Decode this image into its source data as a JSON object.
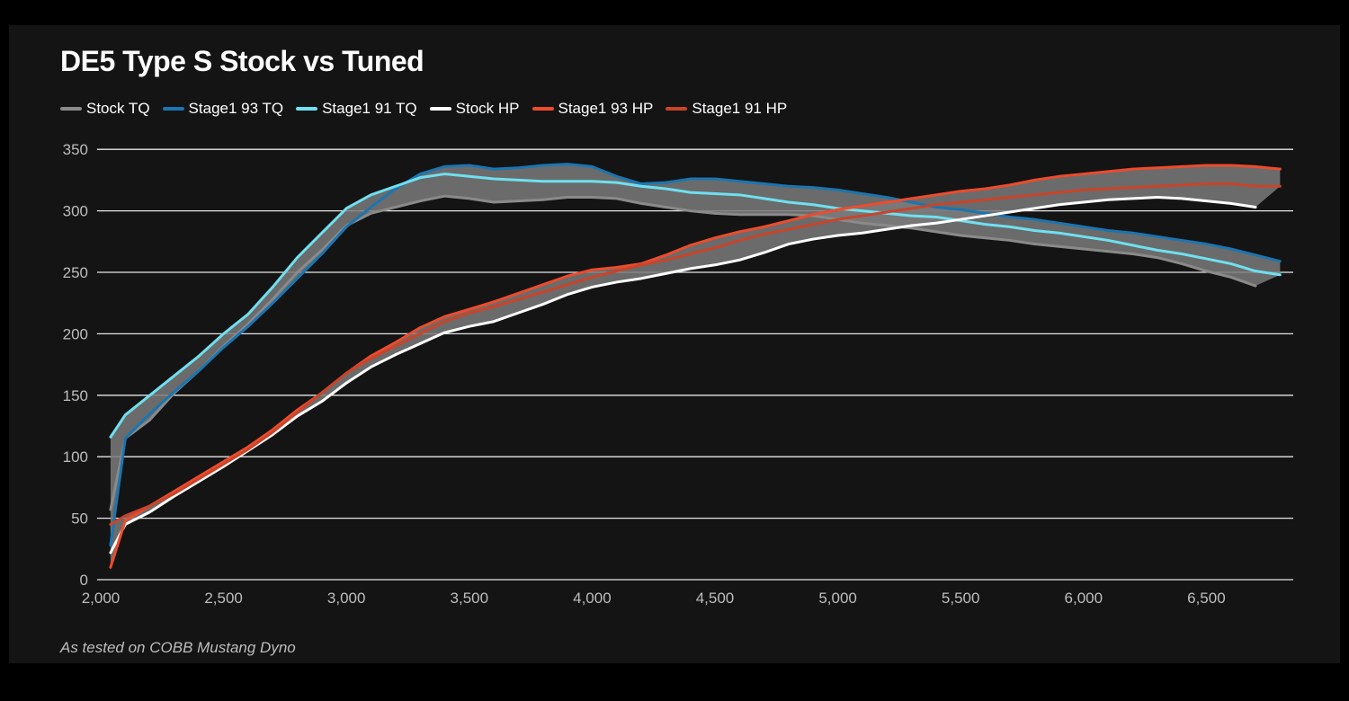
{
  "chart_data": {
    "type": "line",
    "title": "DE5 Type S Stock vs Tuned",
    "footnote": "As tested on COBB Mustang Dyno",
    "xlabel": "",
    "ylabel": "",
    "xlim": [
      2000,
      6850
    ],
    "ylim": [
      0,
      350
    ],
    "xticks": [
      2000,
      2500,
      3000,
      3500,
      4000,
      4500,
      5000,
      5500,
      6000,
      6500
    ],
    "xtick_labels": [
      "2,000",
      "2,500",
      "3,000",
      "3,500",
      "4,000",
      "4,500",
      "5,000",
      "5,500",
      "6,000",
      "6,500"
    ],
    "yticks": [
      0,
      50,
      100,
      150,
      200,
      250,
      300,
      350
    ],
    "ytick_labels": [
      "0",
      "50",
      "100",
      "150",
      "200",
      "250",
      "300",
      "350"
    ],
    "grid": "horizontal",
    "legend_position": "top-left",
    "x": [
      2040,
      2100,
      2200,
      2300,
      2400,
      2500,
      2600,
      2700,
      2800,
      2900,
      3000,
      3100,
      3200,
      3300,
      3400,
      3500,
      3600,
      3700,
      3800,
      3900,
      4000,
      4100,
      4200,
      4300,
      4400,
      4500,
      4600,
      4700,
      4800,
      4900,
      5000,
      5100,
      5200,
      5300,
      5400,
      5500,
      5600,
      5700,
      5800,
      5900,
      6000,
      6100,
      6200,
      6300,
      6400,
      6500,
      6600,
      6700,
      6800
    ],
    "series": [
      {
        "name": "Stock TQ",
        "color": "#8a8a8a",
        "group": "tq",
        "values": [
          57,
          115,
          130,
          152,
          170,
          190,
          208,
          228,
          250,
          268,
          288,
          298,
          303,
          308,
          312,
          310,
          307,
          308,
          309,
          311,
          311,
          310,
          306,
          303,
          300,
          298,
          297,
          297,
          297,
          296,
          293,
          290,
          288,
          286,
          283,
          280,
          278,
          276,
          273,
          271,
          269,
          267,
          265,
          262,
          257,
          251,
          246,
          239,
          null
        ]
      },
      {
        "name": "Stage1 93 TQ",
        "color": "#1b75b0",
        "group": "tq",
        "values": [
          28,
          115,
          135,
          153,
          170,
          189,
          206,
          225,
          245,
          265,
          287,
          303,
          318,
          330,
          336,
          337,
          334,
          335,
          337,
          338,
          336,
          328,
          322,
          323,
          326,
          326,
          324,
          322,
          320,
          319,
          317,
          314,
          311,
          307,
          303,
          301,
          298,
          295,
          293,
          290,
          287,
          284,
          282,
          279,
          276,
          273,
          269,
          264,
          259
        ]
      },
      {
        "name": "Stage1 91 TQ",
        "color": "#6fe0f0",
        "group": "tq",
        "values": [
          116,
          134,
          150,
          166,
          182,
          200,
          216,
          238,
          262,
          282,
          302,
          313,
          320,
          327,
          330,
          328,
          326,
          325,
          324,
          324,
          324,
          323,
          320,
          318,
          315,
          314,
          313,
          310,
          307,
          305,
          302,
          300,
          298,
          296,
          295,
          292,
          289,
          287,
          284,
          282,
          279,
          276,
          272,
          268,
          265,
          261,
          257,
          251,
          248
        ]
      },
      {
        "name": "Stock HP",
        "color": "#ffffff",
        "group": "hp",
        "values": [
          22,
          45,
          55,
          68,
          80,
          92,
          105,
          118,
          133,
          145,
          160,
          173,
          183,
          192,
          201,
          206,
          210,
          217,
          224,
          232,
          238,
          242,
          245,
          249,
          253,
          256,
          260,
          266,
          273,
          277,
          280,
          282,
          285,
          288,
          290,
          293,
          296,
          299,
          302,
          305,
          307,
          309,
          310,
          311,
          310,
          308,
          306,
          303,
          null
        ]
      },
      {
        "name": "Stage1 93 HP",
        "color": "#ee4b2b",
        "group": "hp",
        "values": [
          10,
          48,
          60,
          72,
          84,
          96,
          108,
          122,
          138,
          152,
          168,
          182,
          193,
          205,
          214,
          220,
          226,
          233,
          240,
          247,
          252,
          254,
          257,
          264,
          272,
          278,
          283,
          287,
          292,
          297,
          301,
          304,
          307,
          310,
          313,
          316,
          318,
          321,
          325,
          328,
          330,
          332,
          334,
          335,
          336,
          337,
          337,
          336,
          334
        ]
      },
      {
        "name": "Stage1 91 HP",
        "color": "#c9442a",
        "group": "hp",
        "values": [
          45,
          52,
          60,
          70,
          82,
          94,
          106,
          120,
          136,
          152,
          168,
          180,
          190,
          200,
          210,
          217,
          222,
          228,
          234,
          240,
          246,
          251,
          256,
          260,
          265,
          270,
          276,
          281,
          285,
          289,
          293,
          296,
          299,
          302,
          305,
          307,
          309,
          311,
          313,
          315,
          317,
          318,
          319,
          320,
          321,
          322,
          322,
          320,
          320
        ]
      }
    ]
  }
}
